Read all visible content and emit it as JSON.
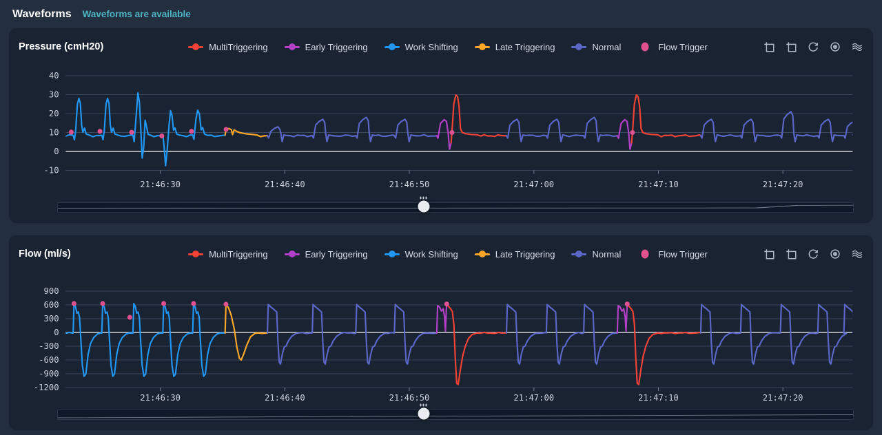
{
  "page": {
    "title": "Waveforms",
    "status": "Waveforms are available"
  },
  "colors": {
    "multi": "#f44336",
    "early": "#b341c8",
    "work": "#2196f3",
    "late": "#ffa726",
    "normal": "#5b67c8",
    "flow_trigger": "#e0518f",
    "accent_teal": "#4db6c2",
    "panel_bg": "#1a2332",
    "page_bg": "#232e3f",
    "grid": "#3a465a",
    "zero_line": "#e3e7ec"
  },
  "legend": [
    {
      "label": "MultiTriggering",
      "series": "multi"
    },
    {
      "label": "Early Triggering",
      "series": "early"
    },
    {
      "label": "Work Shifting",
      "series": "work"
    },
    {
      "label": "Late Triggering",
      "series": "late"
    },
    {
      "label": "Normal",
      "series": "normal"
    },
    {
      "label": "Flow Trigger",
      "series": "flow_trigger"
    }
  ],
  "toolbar_icons": [
    "box-select-icon",
    "box-clear-icon",
    "reset-zoom-icon",
    "target-icon",
    "waves-icon"
  ],
  "chart_data": [
    {
      "type": "line",
      "title": "Pressure (cmH20)",
      "ylim": [
        -10,
        40
      ],
      "y_ticks": [
        40,
        30,
        20,
        10,
        0,
        -10
      ],
      "x_ticks": [
        "21:46:30",
        "21:46:40",
        "21:46:50",
        "21:47:00",
        "21:47:10",
        "21:47:20"
      ],
      "x_tick_ts": [
        10,
        20,
        30,
        40,
        50,
        60
      ],
      "t_range": [
        2.4,
        65.6
      ],
      "grid": true,
      "legend_position": "top-center",
      "breaths": [
        {
          "t": 3.0,
          "type": "work1"
        },
        {
          "t": 5.3,
          "type": "work1"
        },
        {
          "t": 7.8,
          "type": "work2"
        },
        {
          "t": 10.2,
          "type": "work3"
        },
        {
          "t": 12.6,
          "type": "work4"
        },
        {
          "t": 15.2,
          "type": "late"
        },
        {
          "t": 18.6,
          "type": "normal",
          "p": 13
        },
        {
          "t": 22.2,
          "type": "normal",
          "p": 17
        },
        {
          "t": 25.7,
          "type": "normal",
          "p": 18
        },
        {
          "t": 28.8,
          "type": "normal",
          "p": 17
        },
        {
          "t": 32.2,
          "type": "early"
        },
        {
          "t": 33.35,
          "type": "multi"
        },
        {
          "t": 37.8,
          "type": "normal",
          "p": 17
        },
        {
          "t": 41.0,
          "type": "normal",
          "p": 17
        },
        {
          "t": 44.0,
          "type": "normal",
          "p": 18
        },
        {
          "t": 46.7,
          "type": "early"
        },
        {
          "t": 47.85,
          "type": "multi"
        },
        {
          "t": 53.4,
          "type": "normal",
          "p": 17
        },
        {
          "t": 56.6,
          "type": "normal",
          "p": 17
        },
        {
          "t": 59.8,
          "type": "normal",
          "p": 21
        },
        {
          "t": 62.8,
          "type": "normal",
          "p": 17
        },
        {
          "t": 64.9,
          "type": "normal",
          "p": 16
        }
      ],
      "flow_trigger_markers": [
        [
          2.85,
          10.2
        ],
        [
          5.15,
          10.6
        ],
        [
          7.7,
          10.1
        ],
        [
          10.12,
          8.2
        ],
        [
          12.5,
          10.6
        ],
        [
          15.28,
          11.6
        ],
        [
          33.42,
          10.0
        ],
        [
          47.92,
          10.0
        ]
      ],
      "slider_pct": 46,
      "overview": [
        [
          0,
          7.4
        ],
        [
          80,
          7.2
        ],
        [
          88,
          7.0
        ],
        [
          93,
          3.4
        ],
        [
          100,
          3.2
        ]
      ]
    },
    {
      "type": "line",
      "title": "Flow (ml/s)",
      "ylim": [
        -1200,
        900
      ],
      "y_ticks": [
        900,
        600,
        300,
        0,
        -300,
        -600,
        -900,
        -1200
      ],
      "x_ticks": [
        "21:46:30",
        "21:46:40",
        "21:46:50",
        "21:47:00",
        "21:47:10",
        "21:47:20"
      ],
      "x_tick_ts": [
        10,
        20,
        30,
        40,
        50,
        60
      ],
      "t_range": [
        2.4,
        65.6
      ],
      "grid": true,
      "legend_position": "top-center",
      "breaths": [
        {
          "t": 3.0,
          "type": "fwork"
        },
        {
          "t": 5.3,
          "type": "fwork"
        },
        {
          "t": 7.8,
          "type": "fwork"
        },
        {
          "t": 10.2,
          "type": "fwork"
        },
        {
          "t": 12.6,
          "type": "fwork"
        },
        {
          "t": 15.2,
          "type": "flate"
        },
        {
          "t": 18.6,
          "type": "fnormal"
        },
        {
          "t": 22.2,
          "type": "fnormal"
        },
        {
          "t": 25.7,
          "type": "fnormal"
        },
        {
          "t": 28.8,
          "type": "fnormal"
        },
        {
          "t": 32.2,
          "type": "fearly"
        },
        {
          "t": 33.0,
          "type": "fmulti"
        },
        {
          "t": 37.8,
          "type": "fnormal"
        },
        {
          "t": 41.0,
          "type": "fnormal"
        },
        {
          "t": 44.0,
          "type": "fnormal"
        },
        {
          "t": 46.7,
          "type": "fearly"
        },
        {
          "t": 47.5,
          "type": "fmulti"
        },
        {
          "t": 53.4,
          "type": "fnormal"
        },
        {
          "t": 56.6,
          "type": "fnormal"
        },
        {
          "t": 59.8,
          "type": "fnormal"
        },
        {
          "t": 62.8,
          "type": "fnormal"
        },
        {
          "t": 64.9,
          "type": "fnormal"
        }
      ],
      "flow_trigger_markers": [
        [
          3.07,
          630
        ],
        [
          5.37,
          630
        ],
        [
          7.55,
          330
        ],
        [
          10.27,
          630
        ],
        [
          12.67,
          630
        ],
        [
          15.27,
          615
        ],
        [
          33.0,
          620
        ],
        [
          47.5,
          620
        ]
      ],
      "slider_pct": 46,
      "overview": [
        [
          0,
          11
        ],
        [
          35,
          9.2
        ],
        [
          70,
          7.8
        ],
        [
          100,
          6.4
        ]
      ]
    }
  ]
}
